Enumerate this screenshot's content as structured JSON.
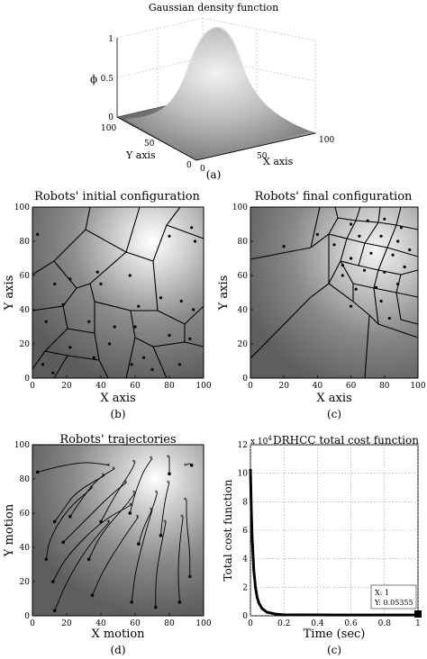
{
  "panels": {
    "a": {
      "title": "Gaussian density function",
      "caption": "(a)",
      "zlabel": "ϕ",
      "xlabel": "X axis",
      "ylabel": "Y axis",
      "zticks": [
        "0",
        "0.5",
        "1"
      ],
      "xticks": [
        "0",
        "50",
        "100"
      ],
      "yticks": [
        "100",
        "50",
        "0"
      ]
    },
    "b": {
      "title": "Robots' initial configuration",
      "caption": "(b)",
      "xlabel": "X axis",
      "ylabel": "Y axis",
      "ticks": [
        "0",
        "20",
        "40",
        "60",
        "80",
        "100"
      ]
    },
    "c": {
      "title": "Robots' final configuration",
      "caption": "(c)",
      "xlabel": "X axis",
      "ylabel": "Y axis",
      "ticks": [
        "0",
        "20",
        "40",
        "60",
        "80",
        "100"
      ]
    },
    "d": {
      "title": "Robots' trajectories",
      "caption": "(d)",
      "xlabel": "X motion",
      "ylabel": "Y motion",
      "ticks": [
        "0",
        "20",
        "40",
        "60",
        "80",
        "100"
      ]
    },
    "e": {
      "title": "DRHCC total cost function",
      "caption": "(c)",
      "exponent": "x 10",
      "exponent_power": "4",
      "xlabel": "Time (sec)",
      "ylabel": "Total cost function",
      "xticks": [
        "0",
        "0.2",
        "0.4",
        "0.6",
        "0.8",
        "1"
      ],
      "yticks": [
        "0",
        "2",
        "4",
        "6",
        "8",
        "10",
        "12"
      ],
      "datatip_x": "X: 1",
      "datatip_y": "Y: 0.05355"
    }
  },
  "chart_data": [
    {
      "type": "surface",
      "title": "Gaussian density function",
      "xlabel": "X axis",
      "ylabel": "Y axis",
      "zlabel": "ϕ",
      "xlim": [
        0,
        100
      ],
      "ylim": [
        0,
        100
      ],
      "zlim": [
        0,
        1
      ],
      "peak": {
        "x": 75,
        "y": 75,
        "z": 1
      },
      "grid": true
    },
    {
      "type": "scatter",
      "title": "Robots' initial configuration",
      "xlabel": "X axis",
      "ylabel": "Y axis",
      "xlim": [
        0,
        100
      ],
      "ylim": [
        0,
        100
      ],
      "density_peak": {
        "x": 70,
        "y": 80
      },
      "x": [
        3,
        22,
        38,
        57,
        80,
        93,
        95,
        13,
        40,
        62,
        75,
        87,
        8,
        18,
        33,
        60,
        80,
        94,
        22,
        48,
        65,
        92,
        6,
        36,
        58,
        86,
        12,
        45,
        70
      ],
      "y": [
        84,
        58,
        62,
        60,
        83,
        88,
        80,
        55,
        55,
        42,
        47,
        45,
        33,
        43,
        33,
        30,
        25,
        40,
        18,
        30,
        12,
        23,
        8,
        12,
        8,
        8,
        3,
        20,
        5
      ]
    },
    {
      "type": "scatter",
      "title": "Robots' final configuration",
      "xlabel": "X axis",
      "ylabel": "Y axis",
      "xlim": [
        0,
        100
      ],
      "ylim": [
        0,
        100
      ],
      "density_peak": {
        "x": 75,
        "y": 75
      },
      "x": [
        20,
        40,
        55,
        60,
        70,
        80,
        90,
        50,
        65,
        78,
        88,
        60,
        72,
        85,
        95,
        55,
        68,
        80,
        92,
        63,
        75,
        88,
        60,
        78,
        83
      ],
      "y": [
        77,
        84,
        66,
        90,
        92,
        93,
        88,
        78,
        83,
        83,
        80,
        70,
        73,
        72,
        75,
        60,
        63,
        62,
        65,
        52,
        53,
        55,
        42,
        45,
        35
      ]
    },
    {
      "type": "line",
      "title": "Robots' trajectories",
      "xlabel": "X motion",
      "ylabel": "Y motion",
      "xlim": [
        0,
        100
      ],
      "ylim": [
        0,
        100
      ],
      "series": [
        {
          "x": [
            3,
            18,
            32,
            45
          ],
          "y": [
            84,
            88,
            90,
            88
          ]
        },
        {
          "x": [
            22,
            30,
            38,
            48
          ],
          "y": [
            58,
            70,
            80,
            86
          ]
        },
        {
          "x": [
            13,
            18,
            25,
            42
          ],
          "y": [
            55,
            62,
            72,
            82
          ]
        },
        {
          "x": [
            8,
            10,
            20,
            35
          ],
          "y": [
            33,
            45,
            62,
            75
          ]
        },
        {
          "x": [
            18,
            30,
            45,
            55
          ],
          "y": [
            43,
            55,
            70,
            78
          ]
        },
        {
          "x": [
            33,
            40,
            55,
            60
          ],
          "y": [
            33,
            48,
            65,
            72
          ]
        },
        {
          "x": [
            12,
            20,
            40,
            58
          ],
          "y": [
            20,
            35,
            55,
            65
          ]
        },
        {
          "x": [
            13,
            20,
            32,
            45
          ],
          "y": [
            3,
            20,
            40,
            55
          ]
        },
        {
          "x": [
            35,
            42,
            55,
            62
          ],
          "y": [
            12,
            28,
            48,
            58
          ]
        },
        {
          "x": [
            58,
            60,
            65,
            70
          ],
          "y": [
            8,
            25,
            45,
            62
          ]
        },
        {
          "x": [
            72,
            72,
            75,
            78
          ],
          "y": [
            5,
            22,
            40,
            55
          ]
        },
        {
          "x": [
            86,
            85,
            86,
            88
          ],
          "y": [
            8,
            25,
            42,
            58
          ]
        },
        {
          "x": [
            92,
            92,
            90,
            90
          ],
          "y": [
            23,
            38,
            55,
            68
          ]
        },
        {
          "x": [
            62,
            65,
            70,
            73
          ],
          "y": [
            42,
            52,
            62,
            72
          ]
        },
        {
          "x": [
            75,
            76,
            78,
            80
          ],
          "y": [
            47,
            58,
            70,
            78
          ]
        },
        {
          "x": [
            40,
            48,
            58,
            60
          ],
          "y": [
            55,
            70,
            85,
            90
          ]
        },
        {
          "x": [
            57,
            60,
            65,
            70
          ],
          "y": [
            60,
            72,
            85,
            92
          ]
        },
        {
          "x": [
            80,
            80,
            80,
            80
          ],
          "y": [
            83,
            88,
            91,
            93
          ]
        },
        {
          "x": [
            93,
            92,
            91,
            90
          ],
          "y": [
            88,
            89,
            89,
            88
          ]
        }
      ]
    },
    {
      "type": "line",
      "title": "DRHCC total cost function",
      "xlabel": "Time (sec)",
      "ylabel": "Total cost function",
      "xlim": [
        0,
        1
      ],
      "ylim": [
        0,
        12
      ],
      "y_exponent": 4,
      "grid": true,
      "series": [
        {
          "x": [
            0,
            0.005,
            0.01,
            0.02,
            0.03,
            0.04,
            0.05,
            0.07,
            0.1,
            0.15,
            0.2,
            0.4,
            0.6,
            0.8,
            1.0
          ],
          "y": [
            10.3,
            7.5,
            5.5,
            3.2,
            2.0,
            1.3,
            0.9,
            0.5,
            0.25,
            0.12,
            0.07,
            0.06,
            0.055,
            0.054,
            0.05355
          ]
        }
      ],
      "datatip": {
        "x": 1,
        "y": 0.05355
      }
    }
  ]
}
